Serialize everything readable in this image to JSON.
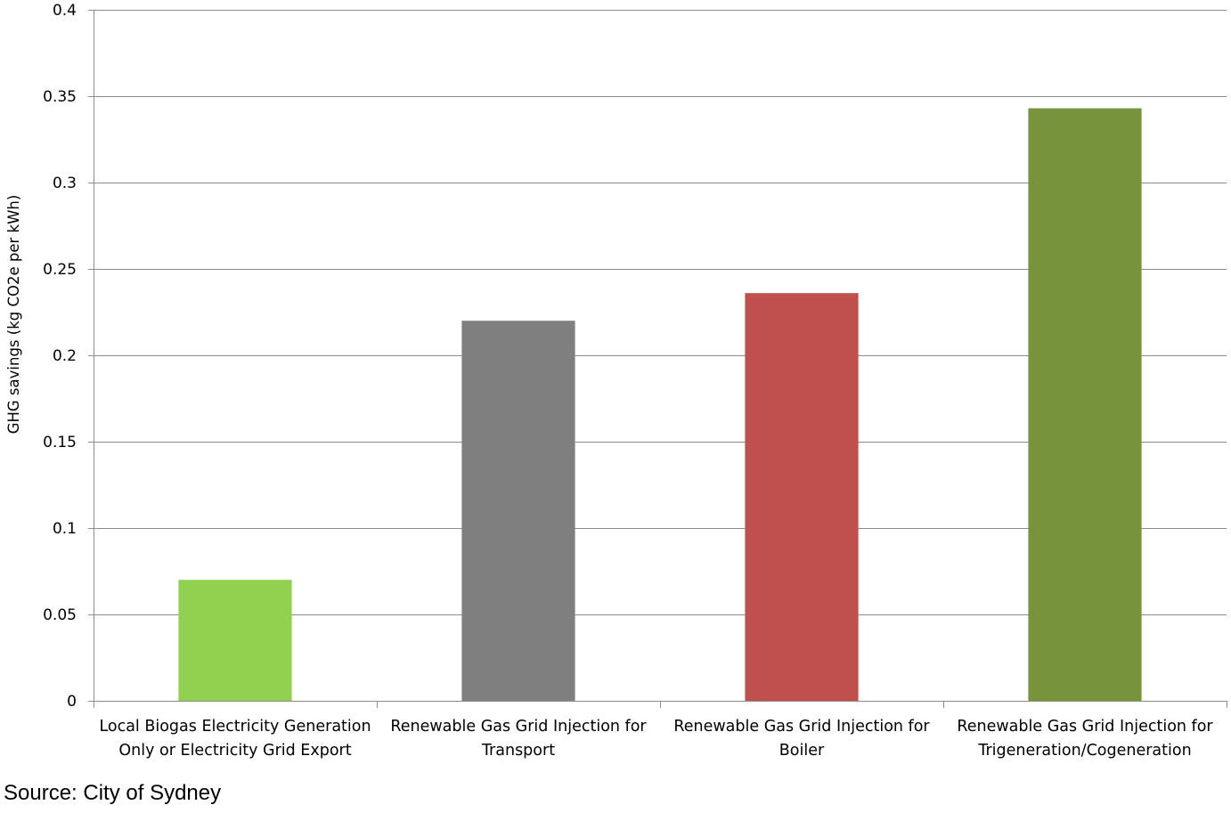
{
  "chart_data": {
    "type": "bar",
    "title": "",
    "xlabel": "",
    "ylabel": "GHG savings (kg CO2e per kWh)",
    "ylim": [
      0,
      0.4
    ],
    "yticks": [
      "0",
      "0.05",
      "0.1",
      "0.15",
      "0.2",
      "0.25",
      "0.3",
      "0.35",
      "0.4"
    ],
    "grid": true,
    "legend": "none",
    "categories": [
      [
        "Local Biogas Electricity Generation",
        "Only or Electricity Grid Export"
      ],
      [
        "Renewable Gas Grid Injection for",
        "Transport"
      ],
      [
        "Renewable Gas Grid Injection for",
        "Boiler"
      ],
      [
        "Renewable Gas Grid Injection for",
        "Trigeneration/Cogeneration"
      ]
    ],
    "values": [
      0.07,
      0.22,
      0.236,
      0.343
    ],
    "colors": [
      "#92d050",
      "#7f7f7f",
      "#c0504d",
      "#77933c"
    ]
  },
  "source": "Source: City of Sydney"
}
